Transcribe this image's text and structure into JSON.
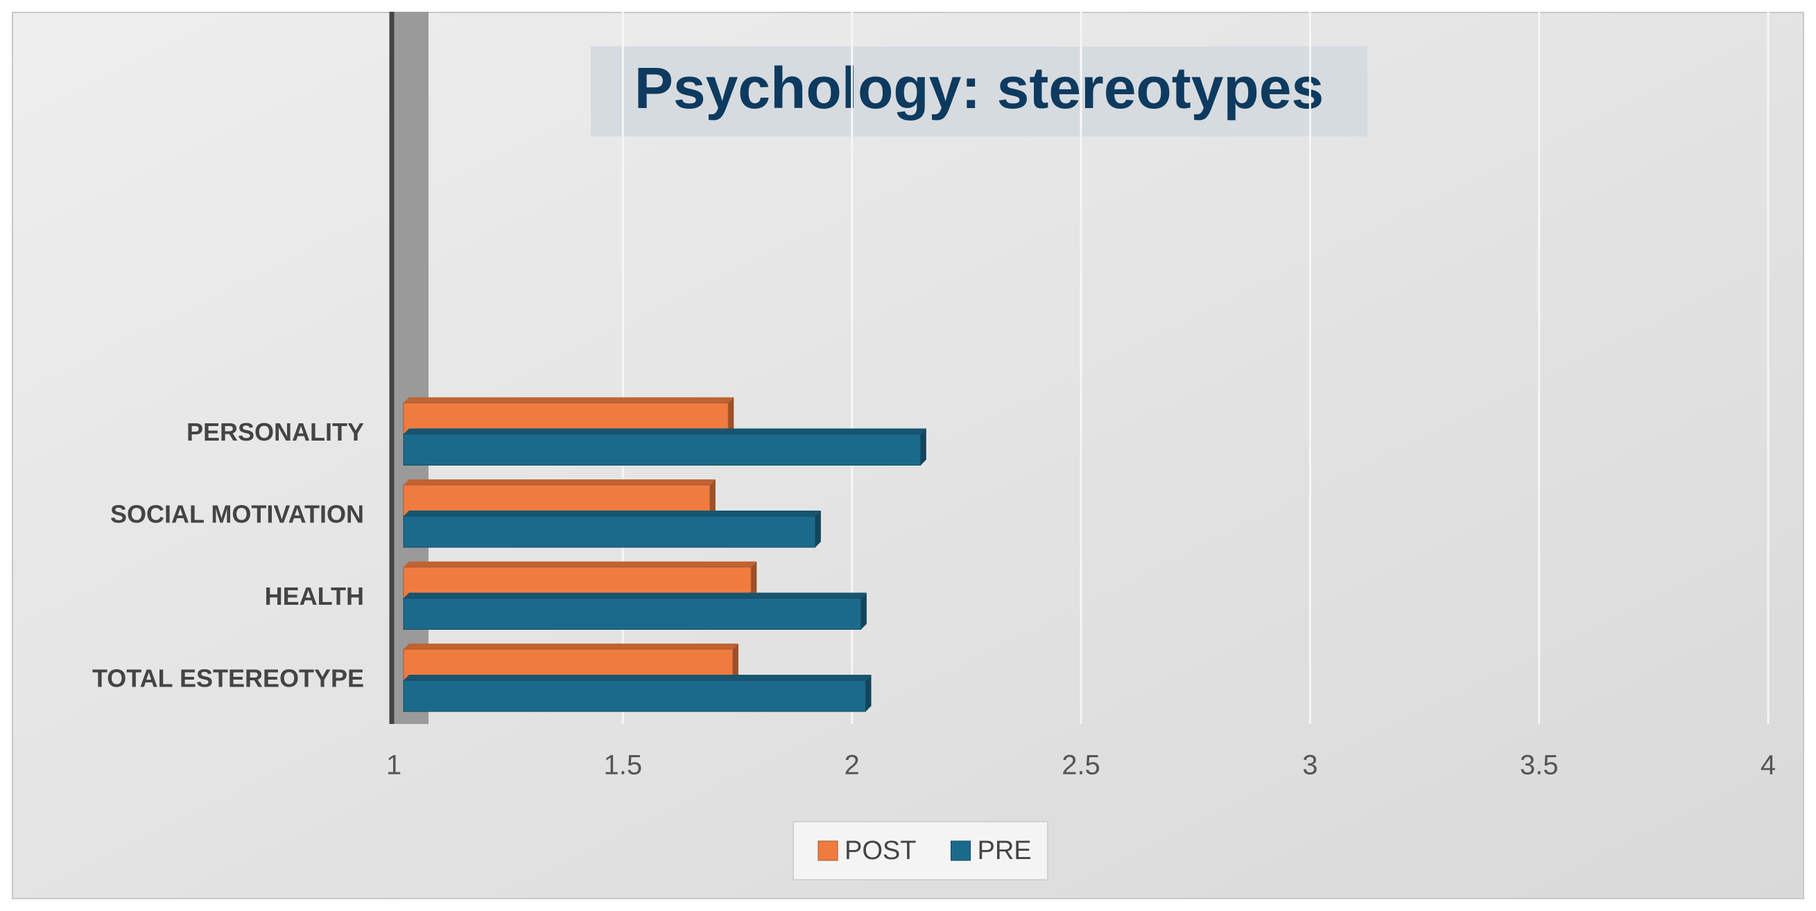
{
  "chart_data": {
    "type": "bar",
    "orientation": "horizontal",
    "title": "Psychology: stereotypes",
    "categories": [
      "TOTAL ESTEREOTYPE",
      "HEALTH",
      "SOCIAL MOTIVATION",
      "PERSONALITY"
    ],
    "series": [
      {
        "name": "POST",
        "color": "#f07b3f",
        "values": [
          1.74,
          1.78,
          1.69,
          1.73
        ]
      },
      {
        "name": "PRE",
        "color": "#1b6a8c",
        "values": [
          2.03,
          2.02,
          1.92,
          2.15
        ]
      }
    ],
    "xlim": [
      1,
      4
    ],
    "xticks": [
      1,
      1.5,
      2,
      2.5,
      3,
      3.5,
      4
    ],
    "grid": true,
    "legend": "bottom"
  }
}
